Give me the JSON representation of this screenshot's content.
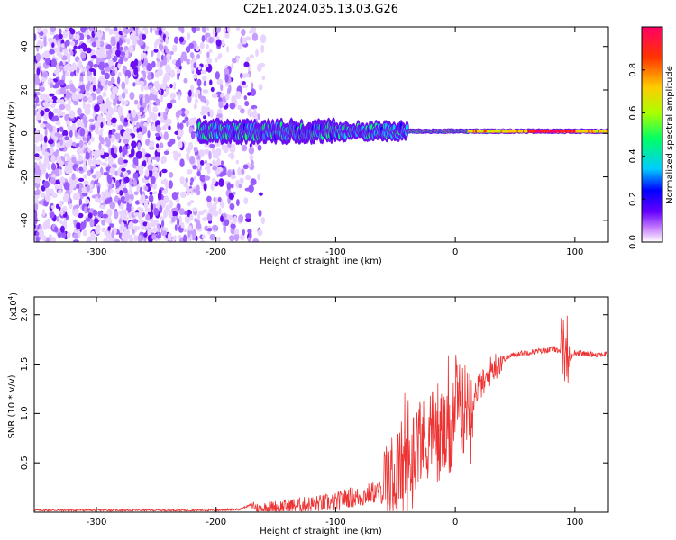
{
  "figure": {
    "title": "C2E1.2024.035.13.03.G26"
  },
  "chart_data": [
    {
      "type": "heatmap",
      "xlabel": "Height of straight line (km)",
      "ylabel": "Frequency (Hz)",
      "xlim": [
        -352,
        128
      ],
      "ylim": [
        -50,
        49
      ],
      "xticks": [
        -300,
        -200,
        -100,
        0,
        100
      ],
      "yticks": [
        -40,
        -20,
        0,
        20,
        40
      ],
      "xtick_labels": [
        "-300",
        "-200",
        "-100",
        "0",
        "100"
      ],
      "ytick_labels": [
        "-40",
        "-20",
        "0",
        "20",
        "40"
      ],
      "colorbar": {
        "label": "Normalized spectral amplitude",
        "range": [
          0,
          1
        ],
        "ticks": [
          0.0,
          0.2,
          0.4,
          0.6,
          0.8
        ],
        "tick_labels": [
          "0.0",
          "0.2",
          "0.4",
          "0.6",
          "0.8"
        ],
        "colormap": [
          "#ffffff",
          "#cc88ff",
          "#6600ff",
          "#0000ff",
          "#00ccff",
          "#00ff66",
          "#aaff00",
          "#ffcc00",
          "#ff3300",
          "#ff0066"
        ]
      },
      "features": [
        {
          "description": "diffuse noise band",
          "x": [
            -352,
            -160
          ],
          "y": [
            -50,
            49
          ]
        },
        {
          "description": "signal track along 0 Hz",
          "x": [
            -215,
            128
          ],
          "y_center": 1
        }
      ]
    },
    {
      "type": "line",
      "xlabel": "Height of straight line (km)",
      "ylabel": "SNR (10 * v/v)",
      "multiplier_label": "(x10",
      "multiplier_exp": "4",
      "multiplier_close": ")",
      "xlim": [
        -352,
        128
      ],
      "ylim": [
        0,
        2.18
      ],
      "xticks": [
        -300,
        -200,
        -100,
        0,
        100
      ],
      "yticks": [
        0.5,
        1.0,
        1.5,
        2.0
      ],
      "xtick_labels": [
        "-300",
        "-200",
        "-100",
        "0",
        "100"
      ],
      "ytick_labels": [
        "0.5",
        "1.0",
        "1.5",
        "2.0"
      ],
      "line_color": "#ee3333",
      "series": [
        {
          "x": [
            -352,
            -300,
            -250,
            -200,
            -180,
            -170,
            -165,
            -160,
            -140,
            -120,
            -100,
            -90,
            -80,
            -70,
            -60,
            -50,
            -45,
            -40,
            -35,
            -30,
            -25,
            -20,
            -15,
            -10,
            -5,
            0,
            5,
            10,
            15,
            20,
            25,
            30,
            35,
            40,
            50,
            60,
            70,
            80,
            85,
            90,
            93,
            96,
            100,
            110,
            120,
            128
          ],
          "values": [
            0.02,
            0.02,
            0.02,
            0.02,
            0.03,
            0.08,
            0.03,
            0.04,
            0.06,
            0.08,
            0.1,
            0.15,
            0.15,
            0.2,
            0.2,
            0.25,
            0.4,
            0.35,
            0.5,
            0.7,
            0.6,
            0.8,
            0.6,
            0.7,
            0.6,
            1.0,
            0.9,
            1.05,
            1.15,
            1.3,
            1.3,
            1.45,
            1.5,
            1.55,
            1.6,
            1.62,
            1.63,
            1.65,
            1.65,
            1.62,
            1.7,
            1.55,
            1.62,
            1.6,
            1.6,
            1.6
          ]
        }
      ]
    }
  ]
}
